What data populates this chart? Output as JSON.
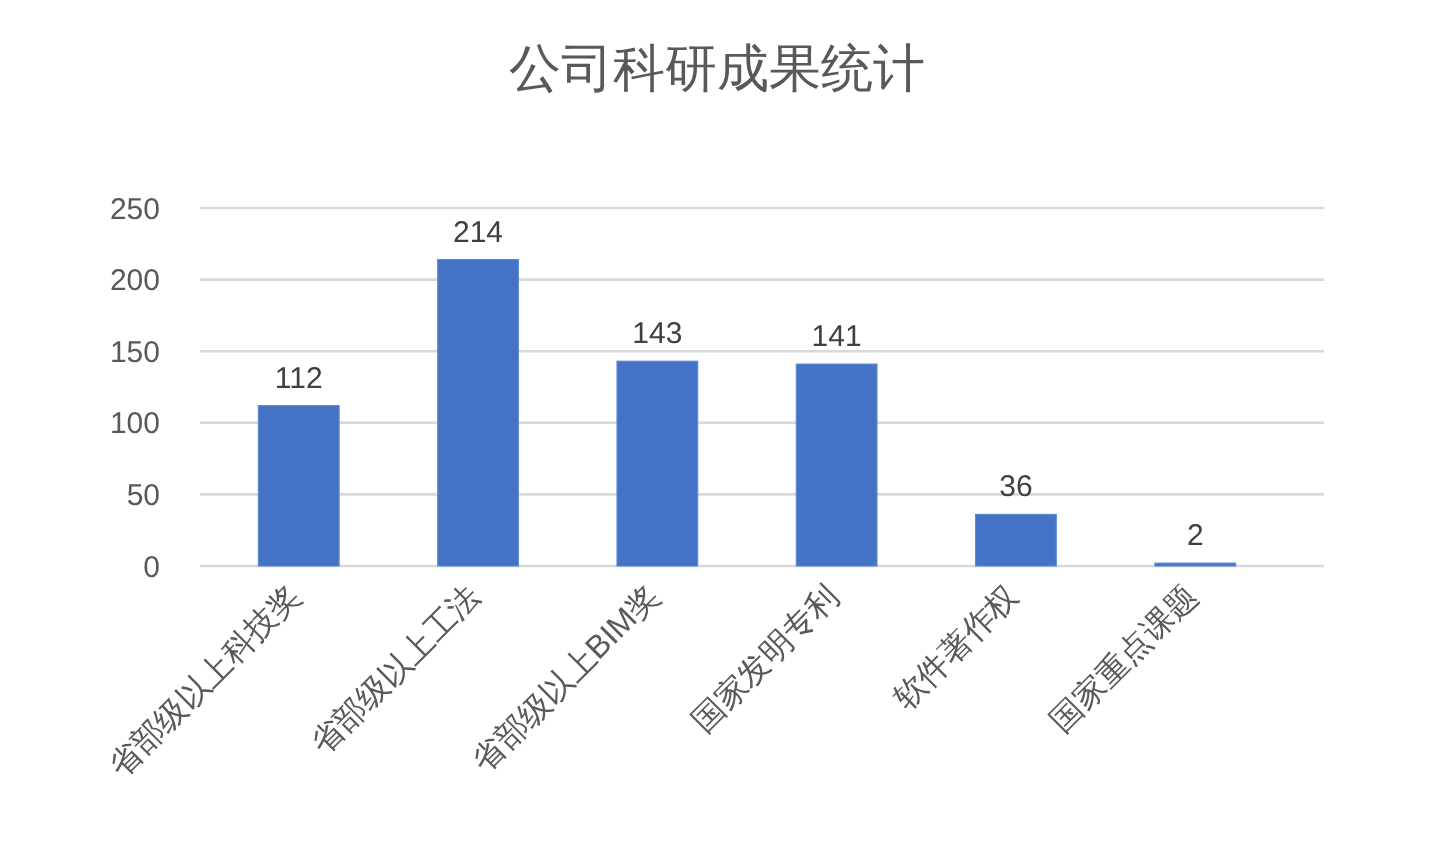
{
  "chart_data": {
    "type": "bar",
    "title": "公司科研成果统计",
    "categories": [
      "省部级以上科技奖",
      "省部级以上工法",
      "省部级以上BIM奖",
      "国家发明专利",
      "软件著作权",
      "国家重点课题"
    ],
    "values": [
      112,
      214,
      143,
      141,
      36,
      2
    ],
    "color": "#4472c4",
    "ylim": [
      0,
      250
    ],
    "yticks": [
      0,
      50,
      100,
      150,
      200,
      250
    ],
    "grid": "y",
    "data_labels": true
  }
}
